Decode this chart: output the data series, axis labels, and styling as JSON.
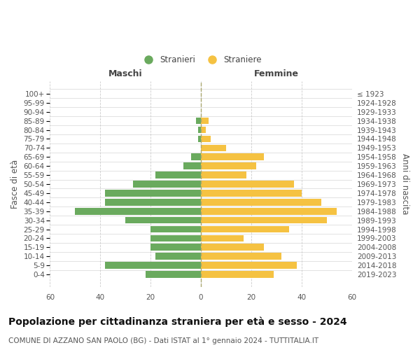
{
  "age_groups": [
    "0-4",
    "5-9",
    "10-14",
    "15-19",
    "20-24",
    "25-29",
    "30-34",
    "35-39",
    "40-44",
    "45-49",
    "50-54",
    "55-59",
    "60-64",
    "65-69",
    "70-74",
    "75-79",
    "80-84",
    "85-89",
    "90-94",
    "95-99",
    "100+"
  ],
  "birth_years": [
    "2019-2023",
    "2014-2018",
    "2009-2013",
    "2004-2008",
    "1999-2003",
    "1994-1998",
    "1989-1993",
    "1984-1988",
    "1979-1983",
    "1974-1978",
    "1969-1973",
    "1964-1968",
    "1959-1963",
    "1954-1958",
    "1949-1953",
    "1944-1948",
    "1939-1943",
    "1934-1938",
    "1929-1933",
    "1924-1928",
    "≤ 1923"
  ],
  "maschi": [
    22,
    38,
    18,
    20,
    20,
    20,
    30,
    50,
    38,
    38,
    27,
    18,
    7,
    4,
    0,
    1,
    1,
    2,
    0,
    0,
    0
  ],
  "femmine": [
    29,
    38,
    32,
    25,
    17,
    35,
    50,
    54,
    48,
    40,
    37,
    18,
    22,
    25,
    10,
    4,
    2,
    3,
    0,
    0,
    0
  ],
  "male_color": "#6aaa5e",
  "female_color": "#f5c242",
  "background_color": "#ffffff",
  "grid_color": "#cccccc",
  "title": "Popolazione per cittadinanza straniera per età e sesso - 2024",
  "subtitle": "COMUNE DI AZZANO SAN PAOLO (BG) - Dati ISTAT al 1° gennaio 2024 - TUTTITALIA.IT",
  "ylabel_left": "Fasce di età",
  "ylabel_right": "Anni di nascita",
  "xlabel_left": "Maschi",
  "xlabel_right": "Femmine",
  "legend_male": "Stranieri",
  "legend_female": "Straniere",
  "xlim": 60,
  "title_fontsize": 10,
  "subtitle_fontsize": 7.5,
  "label_fontsize": 8.5,
  "tick_fontsize": 7.5,
  "header_fontsize": 9
}
